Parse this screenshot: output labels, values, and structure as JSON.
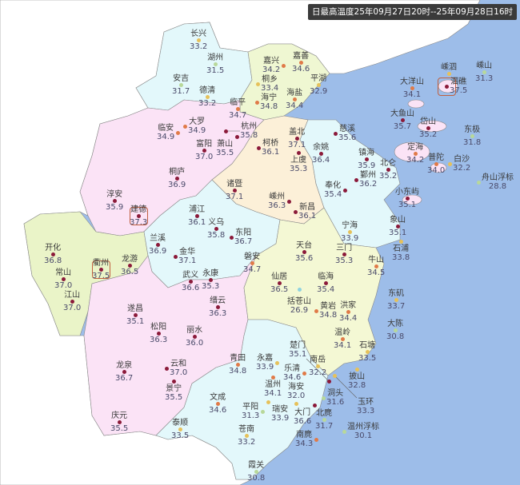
{
  "title": "日最高温度25年09月27日20时--25年09月28日16时",
  "colors": {
    "sea": "#9dbde9",
    "outside_land": "#ffffff",
    "hot": "#8b1a3a",
    "warm": "#e07a48",
    "mild": "#e6c15a",
    "cool": "#b8d89a",
    "cold": "#8fd3e0"
  },
  "stations": [
    {
      "name": "长兴",
      "value": "33.2"
    },
    {
      "name": "湖州",
      "value": "31.5"
    },
    {
      "name": "安吉",
      "value": "31.7"
    },
    {
      "name": "德清",
      "value": "33.2"
    },
    {
      "name": "临平",
      "value": "34.7"
    },
    {
      "name": "大罗",
      "value": "34.9"
    },
    {
      "name": "临安",
      "value": "34.9"
    },
    {
      "name": "杭州",
      "value": "35.8"
    },
    {
      "name": "萧山",
      "value": "35.5"
    },
    {
      "name": "富阳",
      "value": "37.0"
    },
    {
      "name": "桐庐",
      "value": "36.9"
    },
    {
      "name": "淳安",
      "value": "35.9"
    },
    {
      "name": "建德",
      "value": "37.3"
    },
    {
      "name": "诸暨",
      "value": "37.1"
    },
    {
      "name": "浦江",
      "value": "36.1"
    },
    {
      "name": "义乌",
      "value": "35.8"
    },
    {
      "name": "东阳",
      "value": "36.7"
    },
    {
      "name": "嘉善",
      "value": "34.6"
    },
    {
      "name": "嘉兴",
      "value": "34.2"
    },
    {
      "name": "桐乡",
      "value": "33.4"
    },
    {
      "name": "海宁",
      "value": "34.8"
    },
    {
      "name": "平湖",
      "value": "32.9"
    },
    {
      "name": "海盐",
      "value": "34.4"
    },
    {
      "name": "柯桥",
      "value": "36.1"
    },
    {
      "name": "盖北",
      "value": "37.1"
    },
    {
      "name": "上虞",
      "value": "35.3"
    },
    {
      "name": "余姚",
      "value": "36.4"
    },
    {
      "name": "慈溪",
      "value": "35.6"
    },
    {
      "name": "镇海",
      "value": "35.9"
    },
    {
      "name": "北仑",
      "value": "35.2"
    },
    {
      "name": "鄞州",
      "value": "36.2"
    },
    {
      "name": "奉化",
      "value": "35.4"
    },
    {
      "name": "嵊州",
      "value": "36.3"
    },
    {
      "name": "新昌",
      "value": "36.1"
    },
    {
      "name": "宁海",
      "value": "33.9"
    },
    {
      "name": "象山",
      "value": "35.1"
    },
    {
      "name": "石浦",
      "value": "33.8"
    },
    {
      "name": "三门",
      "value": "35.3"
    },
    {
      "name": "天台",
      "value": "35.6"
    },
    {
      "name": "牛山",
      "value": "34.5"
    },
    {
      "name": "仙居",
      "value": "36.5"
    },
    {
      "name": "括苍山",
      "value": "26.9"
    },
    {
      "name": "临海",
      "value": "35.4"
    },
    {
      "name": "黄岩",
      "value": "34.8"
    },
    {
      "name": "洪家",
      "value": "34.4"
    },
    {
      "name": "温岭",
      "value": "34.1"
    },
    {
      "name": "石塘",
      "value": "33.5"
    },
    {
      "name": "东矶",
      "value": "33.7"
    },
    {
      "name": "大陈",
      "value": "30.8"
    },
    {
      "name": "披山",
      "value": "32.8"
    },
    {
      "name": "南岳",
      "value": "32.2"
    },
    {
      "name": "乐清",
      "value": "34.6"
    },
    {
      "name": "玉环",
      "value": "33.3"
    },
    {
      "name": "楚门",
      "value": "35.1"
    },
    {
      "name": "永嘉",
      "value": "33.9"
    },
    {
      "name": "温州",
      "value": "34.1"
    },
    {
      "name": "洞头",
      "value": "31.6"
    },
    {
      "name": "大门",
      "value": "36.6"
    },
    {
      "name": "瑞安",
      "value": "33.9"
    },
    {
      "name": "海安",
      "value": "32.0"
    },
    {
      "name": "平阳",
      "value": "31.3"
    },
    {
      "name": "北麂",
      "value": "31.7"
    },
    {
      "name": "温州浮标",
      "value": "30.1"
    },
    {
      "name": "南麂",
      "value": "34.3"
    },
    {
      "name": "霞关",
      "value": "30.8"
    },
    {
      "name": "苍南",
      "value": "33.2"
    },
    {
      "name": "文成",
      "value": "34.6"
    },
    {
      "name": "泰顺",
      "value": "33.5"
    },
    {
      "name": "庆元",
      "value": "35.5"
    },
    {
      "name": "龙泉",
      "value": "36.7"
    },
    {
      "name": "云和",
      "value": "37.0"
    },
    {
      "name": "景宁",
      "value": "35.5"
    },
    {
      "name": "松阳",
      "value": "36.3"
    },
    {
      "name": "丽水",
      "value": "36.0"
    },
    {
      "name": "遂昌",
      "value": "35.1"
    },
    {
      "name": "缙云",
      "value": "36.3"
    },
    {
      "name": "永康",
      "value": "35.3"
    },
    {
      "name": "武义",
      "value": "36.6"
    },
    {
      "name": "兰溪",
      "value": "36.9"
    },
    {
      "name": "金华",
      "value": "37.1"
    },
    {
      "name": "磐安",
      "value": "34.7"
    },
    {
      "name": "青田",
      "value": "34.8"
    },
    {
      "name": "开化",
      "value": "36.8"
    },
    {
      "name": "常山",
      "value": "37.0"
    },
    {
      "name": "江山",
      "value": "37.0"
    },
    {
      "name": "衢州",
      "value": "37.5"
    },
    {
      "name": "龙游",
      "value": "36.5"
    },
    {
      "name": "嵊泗",
      "value": ""
    },
    {
      "name": "嵊山",
      "value": "31.3"
    },
    {
      "name": "泗礁",
      "value": "37.5"
    },
    {
      "name": "大洋山",
      "value": "34.1"
    },
    {
      "name": "大鱼山",
      "value": "35.7"
    },
    {
      "name": "岱山",
      "value": "35.2"
    },
    {
      "name": "东极",
      "value": "31.8"
    },
    {
      "name": "定海",
      "value": "34.2"
    },
    {
      "name": "普陀",
      "value": "34.0"
    },
    {
      "name": "白沙",
      "value": "32.2"
    },
    {
      "name": "舟山浮标",
      "value": "28.8"
    },
    {
      "name": "小东屿",
      "value": "35.1"
    }
  ]
}
